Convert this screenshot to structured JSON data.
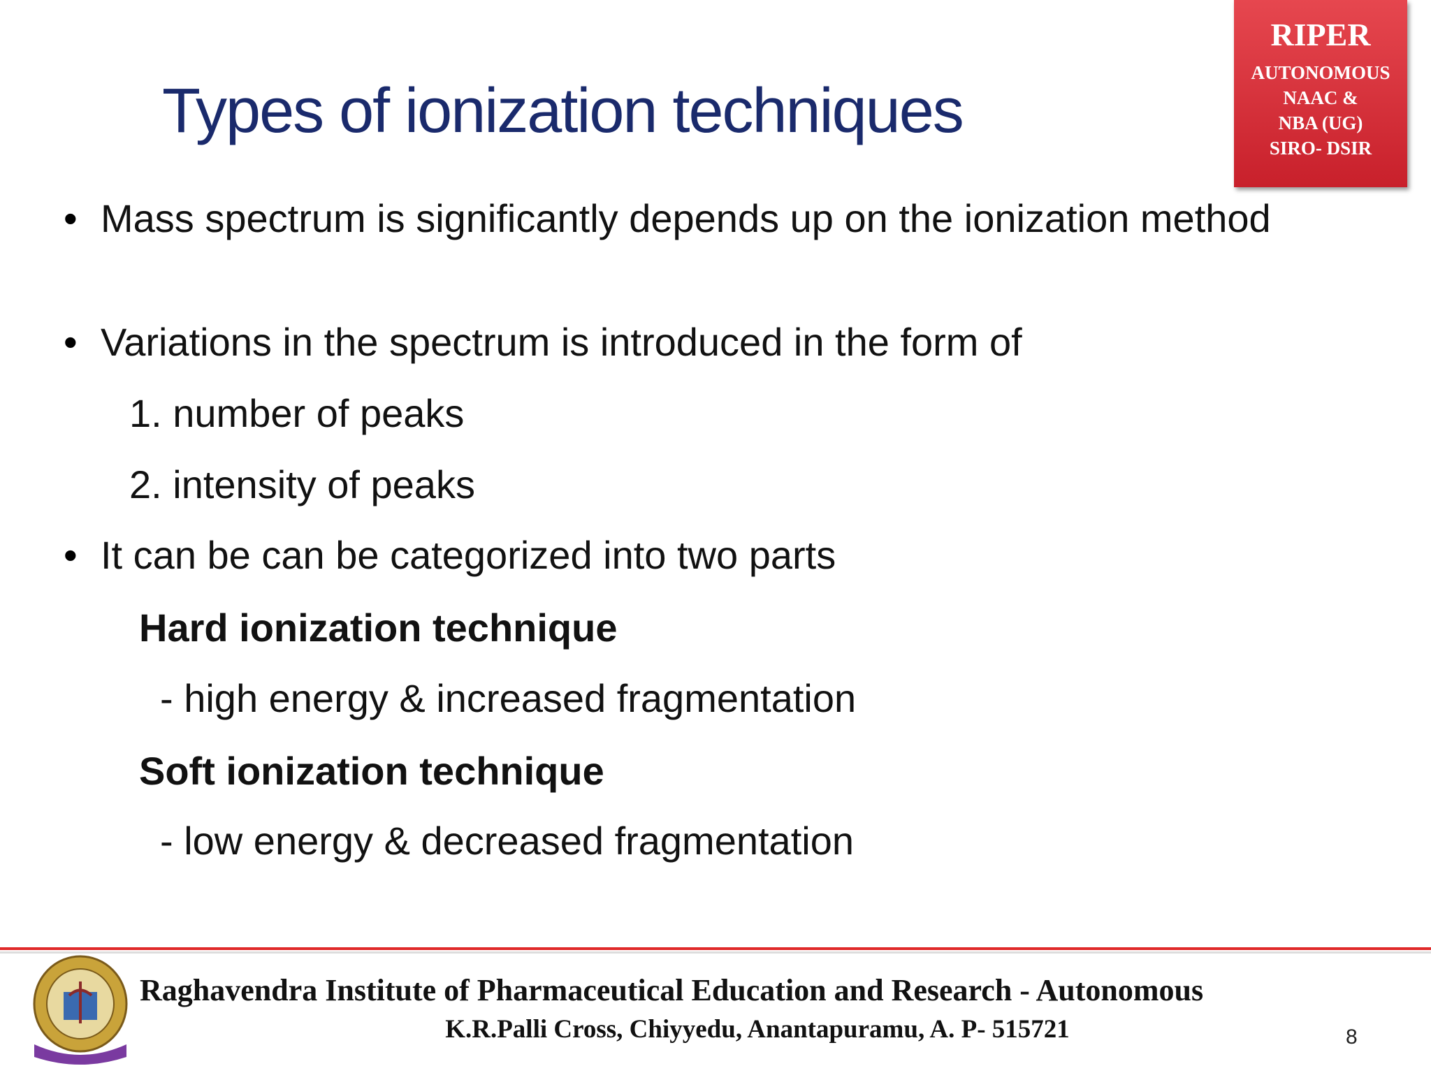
{
  "header": {
    "title": "Types of ionization techniques",
    "badge": [
      "RIPER",
      "AUTONOMOUS",
      "NAAC &",
      "NBA (UG)",
      "SIRO- DSIR"
    ]
  },
  "body": {
    "bullets": [
      "Mass spectrum is significantly  depends up on the ionization method",
      "Variations in the spectrum is introduced in the form of"
    ],
    "list": [
      "1. number of peaks",
      "2. intensity of peaks"
    ],
    "bullet3": "It can be can be categorized into two parts",
    "hard": {
      "heading": "Hard ionization technique",
      "desc": "- high energy & increased fragmentation"
    },
    "soft": {
      "heading": "Soft ionization technique",
      "desc": "- low energy & decreased fragmentation"
    }
  },
  "footer": {
    "institution": "Raghavendra Institute of Pharmaceutical Education and Research - Autonomous",
    "address": "K.R.Palli Cross, Chiyyedu, Anantapuramu, A. P- 515721",
    "page": "8"
  }
}
